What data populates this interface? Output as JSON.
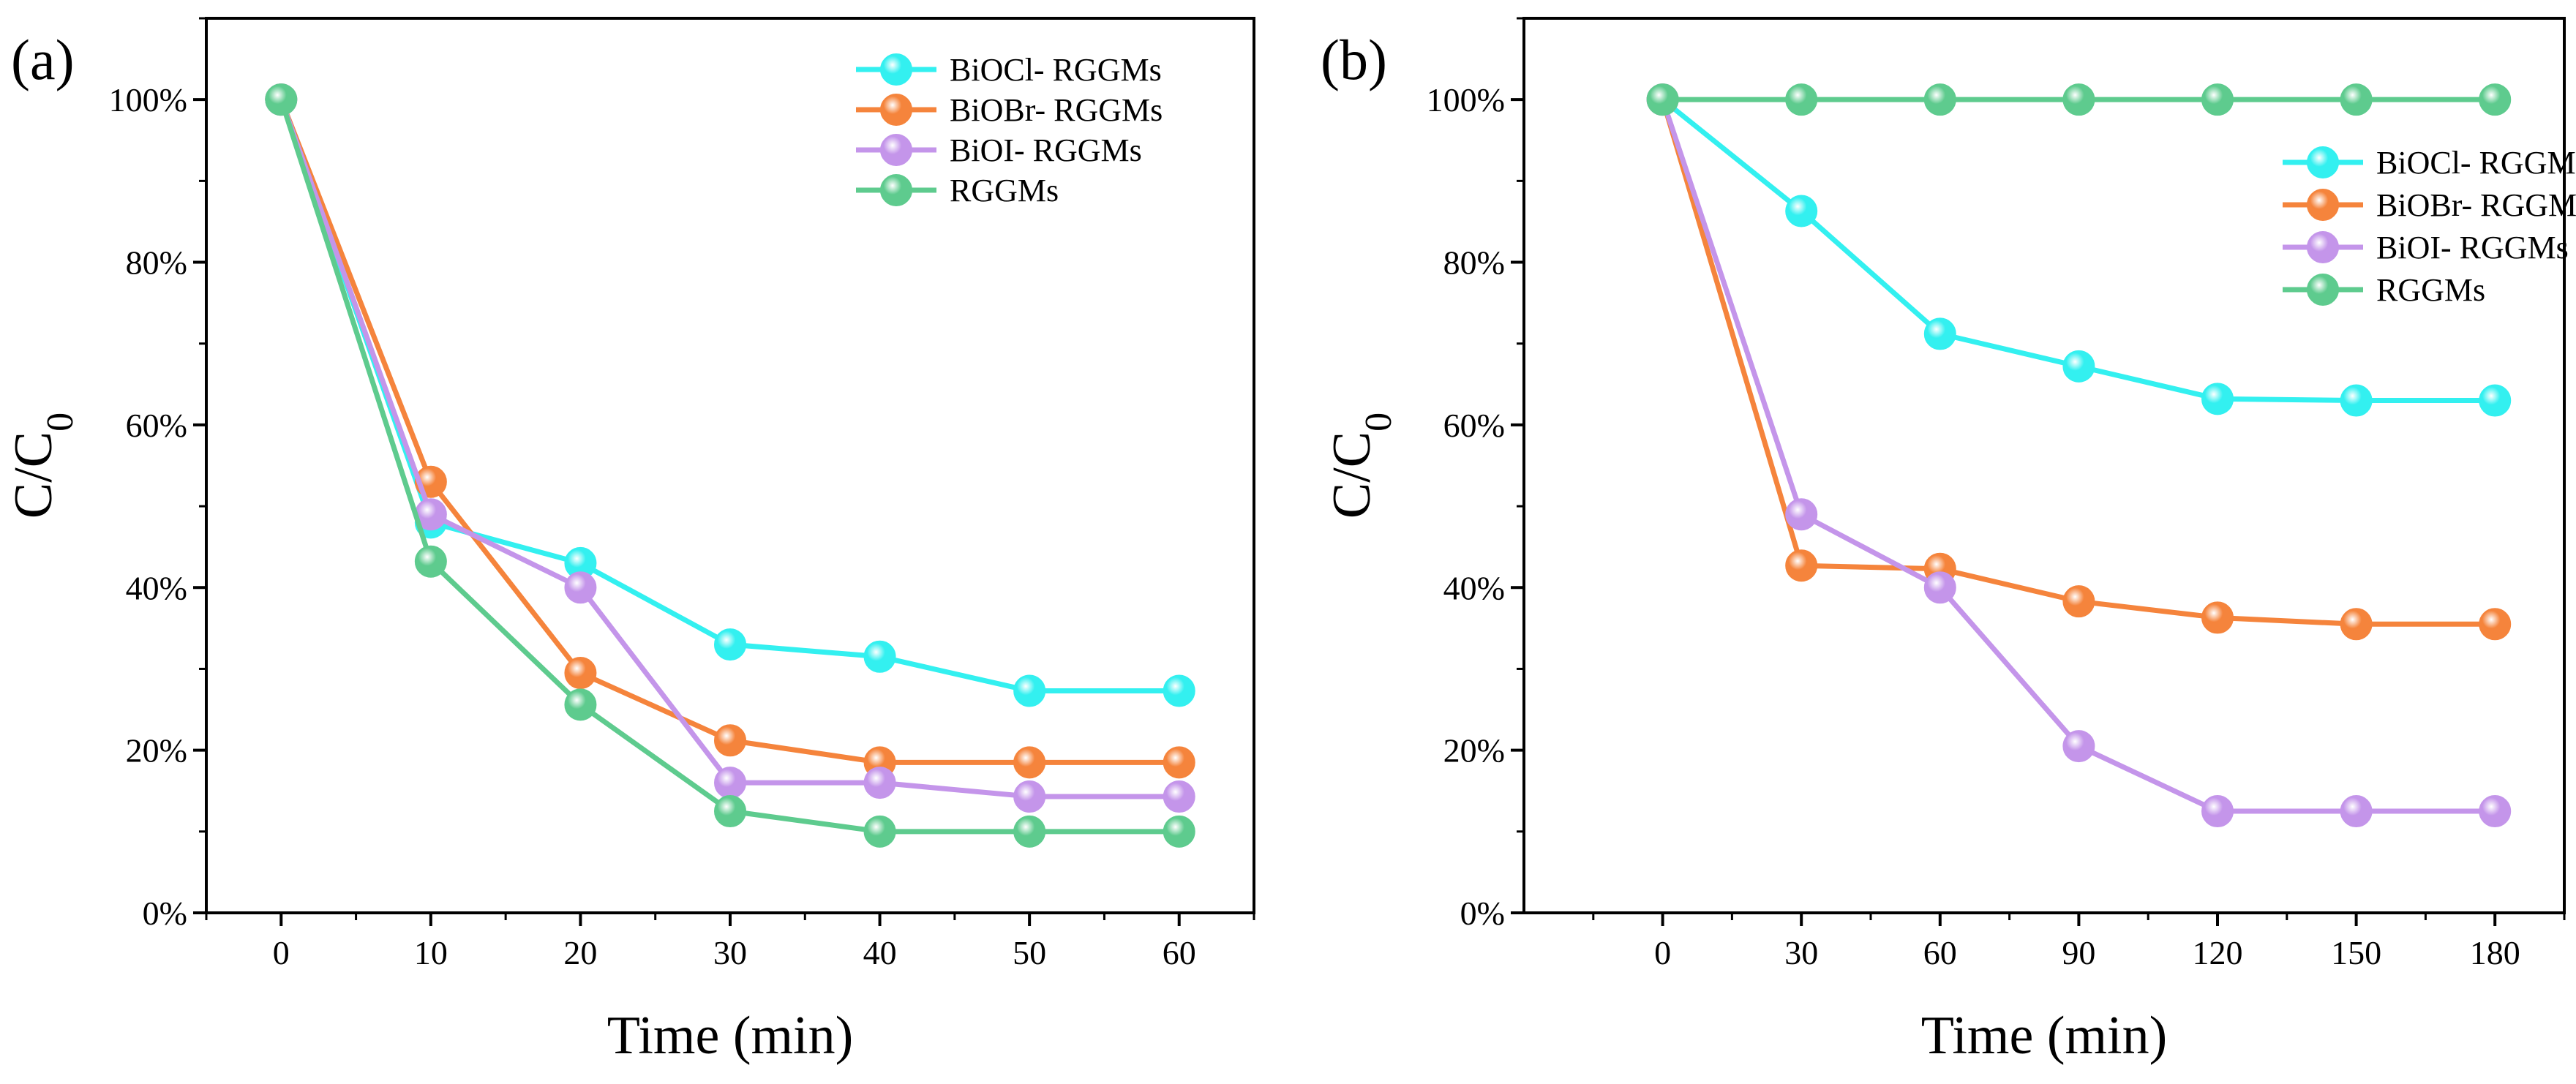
{
  "chart_data": [
    {
      "type": "line",
      "panel_label": "(a)",
      "xlabel": "Time (min)",
      "ylabel": "C/C",
      "ylabel_subscript": "0",
      "x": [
        0,
        10,
        20,
        30,
        40,
        50,
        60
      ],
      "xticks": [
        "0",
        "10",
        "20",
        "30",
        "40",
        "50",
        "60"
      ],
      "xlim": [
        -5,
        65
      ],
      "ylim": [
        0,
        1.1
      ],
      "yticks": [
        "0%",
        "20%",
        "40%",
        "60%",
        "80%",
        "100%"
      ],
      "grid": false,
      "legend_position": "top-right",
      "series": [
        {
          "name": "BiOCl- RGGMs",
          "color": "#33F0F0",
          "values": [
            1.0,
            0.48,
            0.43,
            0.33,
            0.315,
            0.273,
            0.273
          ]
        },
        {
          "name": "BiOBr- RGGMs",
          "color": "#F5843C",
          "values": [
            1.0,
            0.53,
            0.295,
            0.212,
            0.185,
            0.185,
            0.185
          ]
        },
        {
          "name": "BiOI- RGGMs",
          "color": "#C495EA",
          "values": [
            1.0,
            0.49,
            0.4,
            0.16,
            0.16,
            0.143,
            0.143
          ]
        },
        {
          "name": "RGGMs",
          "color": "#5ECB8E",
          "values": [
            1.0,
            0.432,
            0.256,
            0.125,
            0.1,
            0.1,
            0.1
          ]
        }
      ]
    },
    {
      "type": "line",
      "panel_label": "(b)",
      "xlabel": "Time (min)",
      "ylabel": "C/C",
      "ylabel_subscript": "0",
      "x": [
        0,
        30,
        60,
        90,
        120,
        150,
        180
      ],
      "xticks": [
        "0",
        "30",
        "60",
        "90",
        "120",
        "150",
        "180"
      ],
      "xlim": [
        -30,
        195
      ],
      "ylim": [
        0,
        1.1
      ],
      "yticks": [
        "0%",
        "20%",
        "40%",
        "60%",
        "80%",
        "100%"
      ],
      "grid": false,
      "legend_position": "right",
      "series": [
        {
          "name": "BiOCl- RGGMs",
          "color": "#33F0F0",
          "values": [
            1.0,
            0.863,
            0.712,
            0.672,
            0.632,
            0.63,
            0.63
          ]
        },
        {
          "name": "BiOBr- RGGMs",
          "color": "#F5843C",
          "values": [
            1.0,
            0.427,
            0.423,
            0.383,
            0.363,
            0.355,
            0.355
          ]
        },
        {
          "name": "BiOI- RGGMs",
          "color": "#C495EA",
          "values": [
            1.0,
            0.49,
            0.4,
            0.205,
            0.125,
            0.125,
            0.125
          ]
        },
        {
          "name": "RGGMs",
          "color": "#5ECB8E",
          "values": [
            1.0,
            1.0,
            1.0,
            1.0,
            1.0,
            1.0,
            1.0
          ]
        }
      ]
    }
  ]
}
